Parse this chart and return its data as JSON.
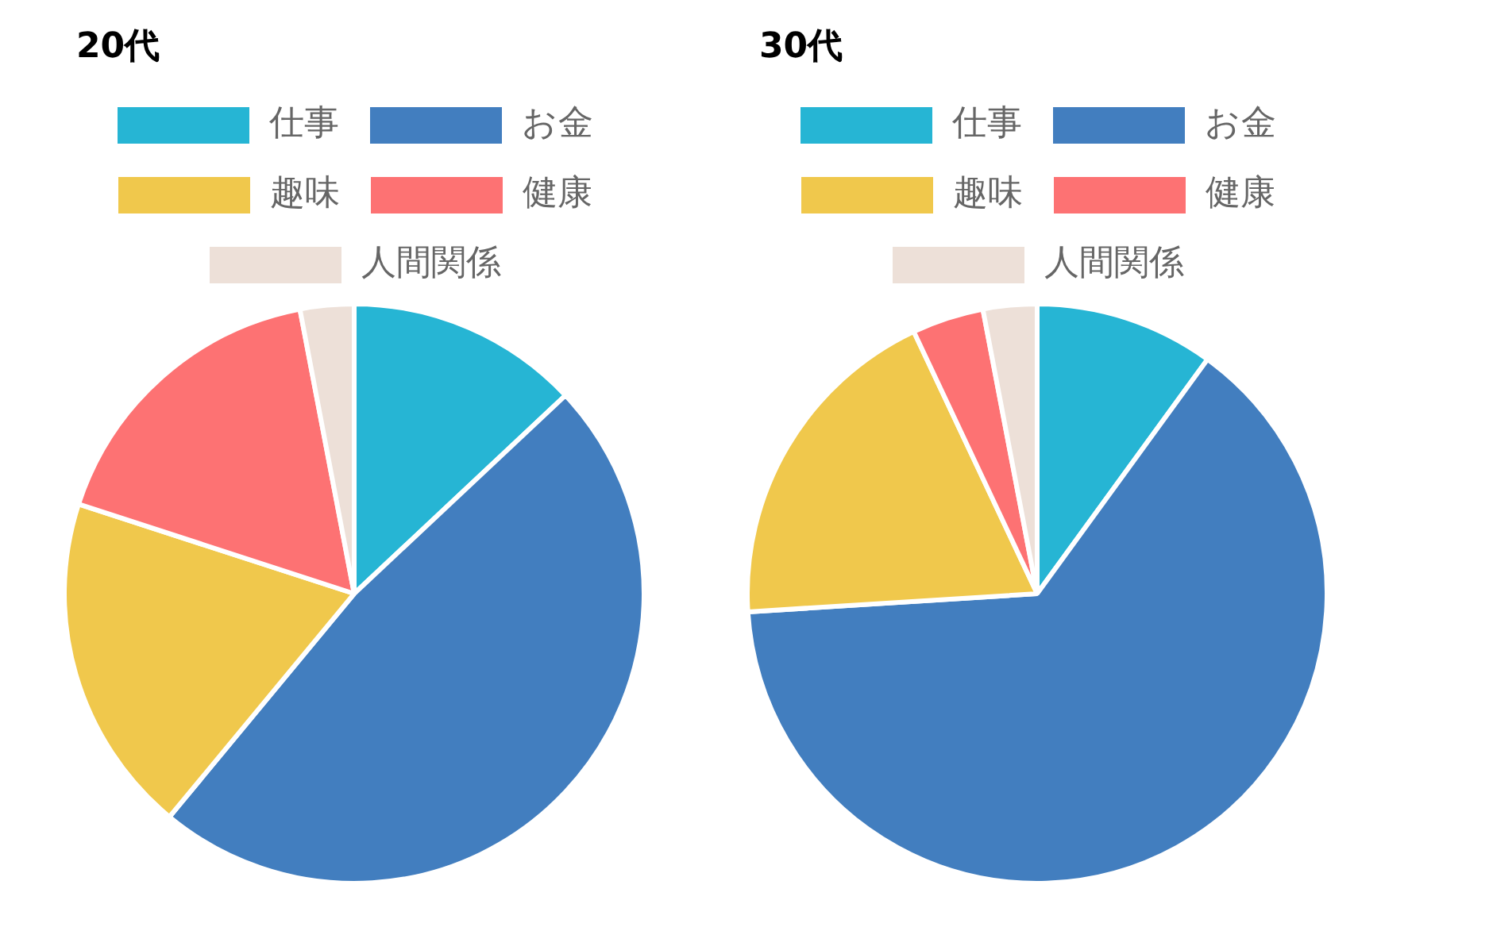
{
  "chart_data": [
    {
      "type": "pie",
      "title": "20代",
      "categories": [
        "仕事",
        "お金",
        "趣味",
        "健康",
        "人間関係"
      ],
      "values": [
        13,
        48,
        19,
        17,
        3
      ],
      "colors": [
        "#26b5d4",
        "#427ebf",
        "#f0c84c",
        "#fd7273",
        "#ede0d8"
      ],
      "legend": "top"
    },
    {
      "type": "pie",
      "title": "30代",
      "categories": [
        "仕事",
        "お金",
        "趣味",
        "健康",
        "人間関係"
      ],
      "values": [
        10,
        64,
        19,
        4,
        3
      ],
      "colors": [
        "#26b5d4",
        "#427ebf",
        "#f0c84c",
        "#fd7273",
        "#ede0d8"
      ],
      "legend": "top"
    }
  ]
}
